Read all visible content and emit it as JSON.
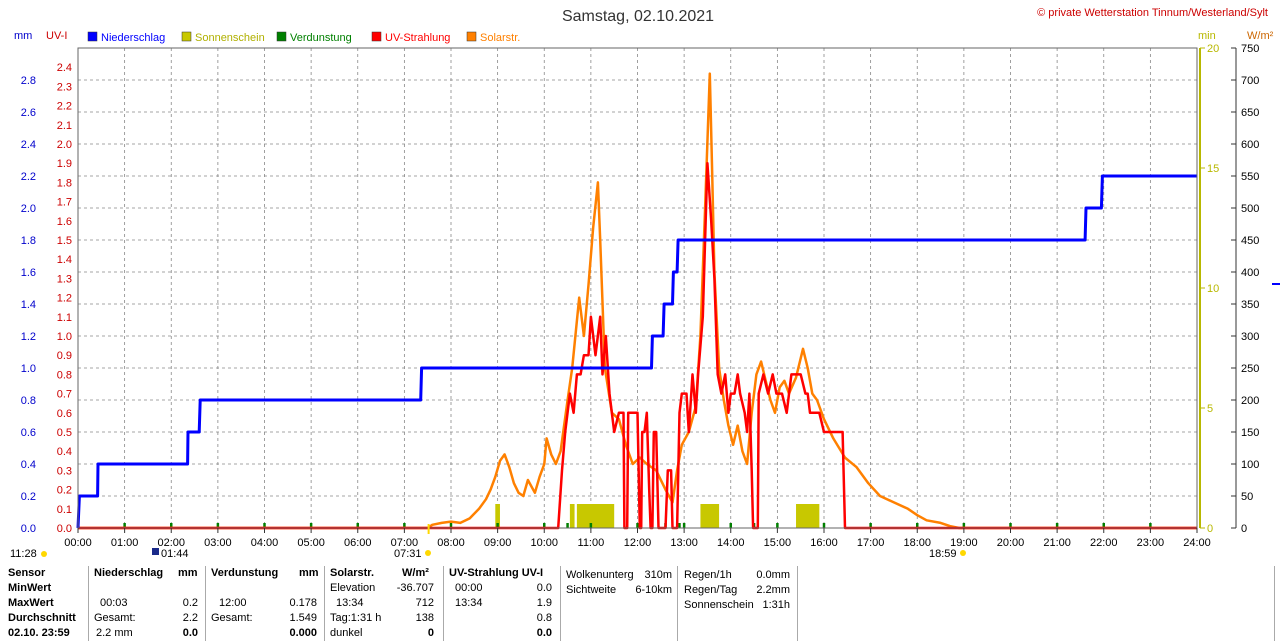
{
  "header": {
    "title": "Samstag, 02.10.2021",
    "credit": "© private Wetterstation Tinnum/Westerland/Sylt"
  },
  "axes": {
    "left_units": [
      "mm",
      "UV-I"
    ],
    "right_units": [
      "min",
      "W/m²"
    ]
  },
  "legend": [
    {
      "label": "Niederschlag",
      "color": "#0000ff"
    },
    {
      "label": "Sonnenschein",
      "color": "#c8c800"
    },
    {
      "label": "Verdunstung",
      "color": "#008000"
    },
    {
      "label": "UV-Strahlung",
      "color": "#ff0000"
    },
    {
      "label": "Solarstr.",
      "color": "#ff8000"
    }
  ],
  "sun": {
    "moonrise": "11:28",
    "moonset": "01:44",
    "sunrise": "07:31",
    "sunset": "18:59"
  },
  "chart_data": {
    "type": "line",
    "title": "Samstag, 02.10.2021",
    "x_axis": {
      "range_hours": [
        0,
        24
      ],
      "tick_labels": [
        "00:00",
        "01:00",
        "02:00",
        "03:00",
        "04:00",
        "05:00",
        "06:00",
        "07:00",
        "08:00",
        "09:00",
        "10:00",
        "11:00",
        "12:00",
        "13:00",
        "14:00",
        "15:00",
        "16:00",
        "17:00",
        "18:00",
        "19:00",
        "20:00",
        "21:00",
        "22:00",
        "23:00",
        "24:00"
      ]
    },
    "y_axes": {
      "mm": {
        "range": [
          0,
          3.0
        ],
        "ticks": [
          "0.0",
          "0.2",
          "0.4",
          "0.6",
          "0.8",
          "1.0",
          "1.2",
          "1.4",
          "1.6",
          "1.8",
          "2.0",
          "2.2",
          "2.4",
          "2.6",
          "2.8"
        ]
      },
      "uvi": {
        "range": [
          0,
          2.5
        ],
        "ticks": [
          "0.0",
          "0.1",
          "0.2",
          "0.3",
          "0.4",
          "0.5",
          "0.6",
          "0.7",
          "0.8",
          "0.9",
          "1.0",
          "1.1",
          "1.2",
          "1.3",
          "1.4",
          "1.5",
          "1.6",
          "1.7",
          "1.8",
          "1.9",
          "2.0",
          "2.1",
          "2.2",
          "2.3",
          "2.4"
        ]
      },
      "min": {
        "range": [
          0,
          20
        ],
        "ticks": [
          "0",
          "5",
          "10",
          "15",
          "20"
        ]
      },
      "wm2": {
        "range": [
          0,
          750
        ],
        "ticks": [
          "0",
          "50",
          "100",
          "150",
          "200",
          "250",
          "300",
          "350",
          "400",
          "450",
          "500",
          "550",
          "600",
          "650",
          "700",
          "750"
        ]
      }
    },
    "grid": true,
    "legend_position": "top-left",
    "series": [
      {
        "name": "Niederschlag",
        "axis": "mm",
        "color": "#0000ff",
        "step": true,
        "points": [
          [
            0.0,
            0.0
          ],
          [
            0.03,
            0.2
          ],
          [
            0.42,
            0.2
          ],
          [
            0.43,
            0.4
          ],
          [
            2.35,
            0.4
          ],
          [
            2.36,
            0.6
          ],
          [
            2.6,
            0.6
          ],
          [
            2.62,
            0.8
          ],
          [
            7.35,
            0.8
          ],
          [
            7.37,
            1.0
          ],
          [
            12.3,
            1.0
          ],
          [
            12.32,
            1.2
          ],
          [
            12.55,
            1.2
          ],
          [
            12.57,
            1.4
          ],
          [
            12.75,
            1.4
          ],
          [
            12.77,
            1.6
          ],
          [
            12.85,
            1.6
          ],
          [
            12.87,
            1.8
          ],
          [
            21.6,
            1.8
          ],
          [
            21.62,
            2.0
          ],
          [
            21.95,
            2.0
          ],
          [
            21.97,
            2.2
          ],
          [
            24.0,
            2.2
          ]
        ]
      },
      {
        "name": "UV-Strahlung",
        "axis": "uvi",
        "color": "#ff0000",
        "points": [
          [
            0,
            0
          ],
          [
            10.3,
            0
          ],
          [
            10.38,
            0.3
          ],
          [
            10.45,
            0.5
          ],
          [
            10.55,
            0.7
          ],
          [
            10.63,
            0.6
          ],
          [
            10.7,
            0.8
          ],
          [
            10.78,
            0.8
          ],
          [
            10.85,
            0.9
          ],
          [
            10.95,
            0.9
          ],
          [
            11.0,
            1.1
          ],
          [
            11.1,
            0.9
          ],
          [
            11.2,
            1.1
          ],
          [
            11.25,
            0.8
          ],
          [
            11.32,
            1.0
          ],
          [
            11.4,
            0.7
          ],
          [
            11.5,
            0.5
          ],
          [
            11.6,
            0.6
          ],
          [
            11.7,
            0.6
          ],
          [
            11.72,
            0.0
          ],
          [
            11.78,
            0.0
          ],
          [
            11.8,
            0.6
          ],
          [
            12.0,
            0.6
          ],
          [
            12.05,
            0.0
          ],
          [
            12.08,
            0.0
          ],
          [
            12.1,
            0.5
          ],
          [
            12.15,
            0.5
          ],
          [
            12.2,
            0.6
          ],
          [
            12.25,
            0.2
          ],
          [
            12.28,
            0.0
          ],
          [
            12.32,
            0.0
          ],
          [
            12.35,
            0.5
          ],
          [
            12.4,
            0.5
          ],
          [
            12.45,
            0.0
          ],
          [
            12.6,
            0.0
          ],
          [
            12.65,
            0.3
          ],
          [
            12.72,
            0.3
          ],
          [
            12.75,
            0.0
          ],
          [
            12.85,
            0.0
          ],
          [
            12.9,
            0.6
          ],
          [
            12.95,
            0.7
          ],
          [
            13.05,
            0.7
          ],
          [
            13.1,
            0.5
          ],
          [
            13.18,
            0.8
          ],
          [
            13.25,
            0.6
          ],
          [
            13.3,
            0.8
          ],
          [
            13.4,
            1.1
          ],
          [
            13.5,
            1.9
          ],
          [
            13.58,
            1.6
          ],
          [
            13.65,
            1.3
          ],
          [
            13.72,
            0.8
          ],
          [
            13.8,
            0.7
          ],
          [
            13.88,
            0.8
          ],
          [
            13.95,
            0.6
          ],
          [
            14.0,
            0.7
          ],
          [
            14.08,
            0.7
          ],
          [
            14.15,
            0.8
          ],
          [
            14.2,
            0.7
          ],
          [
            14.3,
            0.6
          ],
          [
            14.35,
            0.5
          ],
          [
            14.4,
            0.7
          ],
          [
            14.45,
            0.3
          ],
          [
            14.48,
            0.0
          ],
          [
            14.58,
            0.0
          ],
          [
            14.6,
            0.7
          ],
          [
            14.7,
            0.8
          ],
          [
            14.8,
            0.7
          ],
          [
            14.9,
            0.8
          ],
          [
            14.98,
            0.7
          ],
          [
            15.1,
            0.7
          ],
          [
            15.2,
            0.6
          ],
          [
            15.3,
            0.8
          ],
          [
            15.5,
            0.8
          ],
          [
            15.6,
            0.7
          ],
          [
            15.65,
            0.7
          ],
          [
            15.7,
            0.6
          ],
          [
            15.9,
            0.6
          ],
          [
            16.0,
            0.5
          ],
          [
            16.4,
            0.5
          ],
          [
            16.45,
            0.0
          ],
          [
            24,
            0
          ]
        ]
      },
      {
        "name": "Solarstr.",
        "axis": "wm2",
        "color": "#ff8000",
        "points": [
          [
            0,
            0
          ],
          [
            7.5,
            0
          ],
          [
            7.6,
            5
          ],
          [
            7.8,
            8
          ],
          [
            8.0,
            10
          ],
          [
            8.2,
            8
          ],
          [
            8.4,
            15
          ],
          [
            8.6,
            30
          ],
          [
            8.75,
            45
          ],
          [
            8.85,
            60
          ],
          [
            8.95,
            80
          ],
          [
            9.05,
            105
          ],
          [
            9.15,
            115
          ],
          [
            9.25,
            95
          ],
          [
            9.35,
            70
          ],
          [
            9.45,
            55
          ],
          [
            9.55,
            50
          ],
          [
            9.65,
            75
          ],
          [
            9.8,
            55
          ],
          [
            9.9,
            80
          ],
          [
            10.0,
            100
          ],
          [
            10.05,
            140
          ],
          [
            10.15,
            115
          ],
          [
            10.25,
            100
          ],
          [
            10.35,
            120
          ],
          [
            10.5,
            200
          ],
          [
            10.6,
            250
          ],
          [
            10.75,
            360
          ],
          [
            10.85,
            300
          ],
          [
            10.95,
            380
          ],
          [
            11.05,
            470
          ],
          [
            11.15,
            540
          ],
          [
            11.2,
            450
          ],
          [
            11.3,
            250
          ],
          [
            11.45,
            180
          ],
          [
            11.6,
            170
          ],
          [
            11.75,
            130
          ],
          [
            11.9,
            100
          ],
          [
            12.05,
            110
          ],
          [
            12.2,
            100
          ],
          [
            12.4,
            90
          ],
          [
            12.6,
            60
          ],
          [
            12.75,
            40
          ],
          [
            12.85,
            90
          ],
          [
            12.95,
            130
          ],
          [
            13.1,
            150
          ],
          [
            13.25,
            190
          ],
          [
            13.35,
            300
          ],
          [
            13.45,
            500
          ],
          [
            13.55,
            710
          ],
          [
            13.6,
            560
          ],
          [
            13.65,
            400
          ],
          [
            13.75,
            250
          ],
          [
            13.85,
            200
          ],
          [
            13.95,
            160
          ],
          [
            14.05,
            130
          ],
          [
            14.15,
            160
          ],
          [
            14.25,
            120
          ],
          [
            14.35,
            100
          ],
          [
            14.45,
            180
          ],
          [
            14.55,
            240
          ],
          [
            14.65,
            260
          ],
          [
            14.75,
            230
          ],
          [
            14.85,
            200
          ],
          [
            14.95,
            180
          ],
          [
            15.05,
            220
          ],
          [
            15.15,
            230
          ],
          [
            15.25,
            210
          ],
          [
            15.4,
            235
          ],
          [
            15.55,
            280
          ],
          [
            15.65,
            250
          ],
          [
            15.75,
            210
          ],
          [
            15.85,
            200
          ],
          [
            16.0,
            170
          ],
          [
            16.2,
            140
          ],
          [
            16.45,
            110
          ],
          [
            16.7,
            95
          ],
          [
            16.95,
            70
          ],
          [
            17.2,
            50
          ],
          [
            17.5,
            40
          ],
          [
            17.8,
            30
          ],
          [
            18.0,
            20
          ],
          [
            18.2,
            12
          ],
          [
            18.5,
            8
          ],
          [
            18.7,
            3
          ],
          [
            18.9,
            0
          ],
          [
            24,
            0
          ]
        ]
      },
      {
        "name": "Sonnenschein",
        "axis": "min",
        "color": "#c8c800",
        "bars_hours": [
          [
            8.95,
            9.05
          ],
          [
            10.55,
            10.65
          ],
          [
            10.7,
            11.5
          ],
          [
            13.35,
            13.75
          ],
          [
            15.4,
            15.9
          ]
        ],
        "bar_height_min": 1
      },
      {
        "name": "Verdunstung",
        "axis": "mm",
        "color": "#008000",
        "spikes_hours": [
          1.0,
          2.0,
          3.0,
          4.0,
          5.0,
          6.0,
          7.0,
          8.0,
          9.0,
          10.0,
          10.5,
          11.0,
          12.0,
          12.6,
          12.9,
          13.0,
          14.0,
          14.5,
          15.0,
          16.0,
          17.0,
          18.0,
          19.0,
          20.0,
          21.0,
          22.0,
          23.0
        ]
      }
    ]
  },
  "stats": {
    "sensor_col": [
      "Sensor",
      "MinWert",
      "MaxWert",
      "Durchschnitt",
      "02.10. 23:59"
    ],
    "niederschlag": {
      "header": "Niederschlag",
      "unit": "mm",
      "rows": [
        [
          "00:03",
          "0.2"
        ],
        [
          "Gesamt:",
          "2.2"
        ],
        [
          "2.2 mm",
          "0.0"
        ]
      ]
    },
    "verdunstung": {
      "header": "Verdunstung",
      "unit": "mm",
      "rows": [
        [
          "12:00",
          "0.178"
        ],
        [
          "Gesamt:",
          "1.549"
        ],
        [
          "",
          "0.000"
        ]
      ]
    },
    "solar": {
      "header": "Solarstr.",
      "unit": "W/m²",
      "rows": [
        [
          "Elevation",
          "-36.707"
        ],
        [
          "13:34",
          "712"
        ],
        [
          "Tag:1:31 h",
          "138"
        ],
        [
          "dunkel",
          "0"
        ]
      ]
    },
    "uv": {
      "header": "UV-Strahlung UV-I",
      "rows": [
        [
          "00:00",
          "0.0"
        ],
        [
          "13:34",
          "1.9"
        ],
        [
          "",
          "0.8"
        ],
        [
          "",
          "0.0"
        ]
      ]
    },
    "wolken": {
      "rows": [
        [
          "Wolkenunterg",
          "310m"
        ],
        [
          "Sichtweite",
          "6-10km"
        ]
      ]
    },
    "regen": {
      "rows": [
        [
          "Regen/1h",
          "0.0mm"
        ],
        [
          "Regen/Tag",
          "2.2mm"
        ],
        [
          "Sonnenschein",
          "1:31h"
        ]
      ]
    }
  }
}
